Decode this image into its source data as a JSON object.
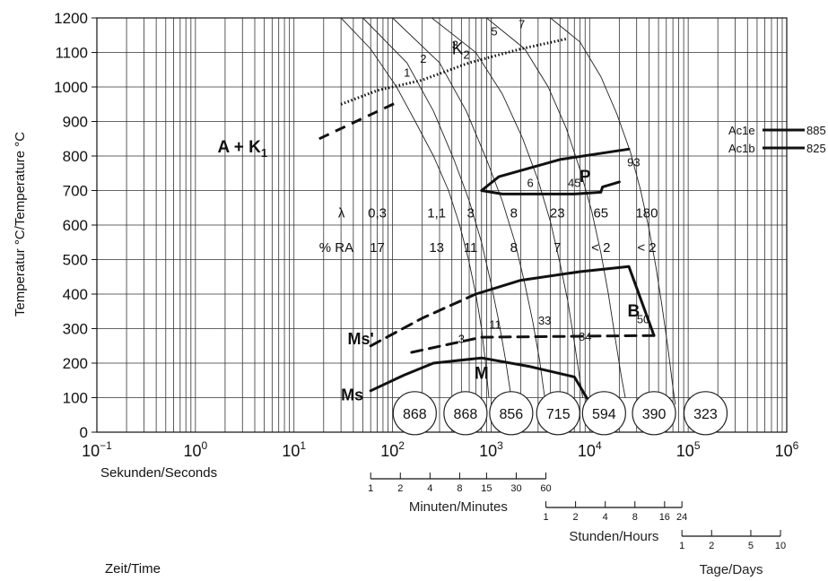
{
  "chart_data": {
    "type": "line",
    "title": "",
    "ylabel": "Temperatur °C/Temperature °C",
    "xlabel_seconds": "Sekunden/Seconds",
    "xlabel_time": "Zeit/Time",
    "xscale": "log",
    "xlim": [
      0.1,
      1000000
    ],
    "ylim": [
      0,
      1200
    ],
    "grid": true,
    "x_ticks": [
      {
        "value": 0.1,
        "base": "10",
        "exp": "−1"
      },
      {
        "value": 1,
        "base": "10",
        "exp": "0"
      },
      {
        "value": 10,
        "base": "10",
        "exp": "1"
      },
      {
        "value": 100,
        "base": "10",
        "exp": "2"
      },
      {
        "value": 1000,
        "base": "10",
        "exp": "3"
      },
      {
        "value": 10000,
        "base": "10",
        "exp": "4"
      },
      {
        "value": 100000,
        "base": "10",
        "exp": "5"
      },
      {
        "value": 1000000,
        "base": "10",
        "exp": "6"
      }
    ],
    "y_ticks": [
      0,
      100,
      200,
      300,
      400,
      500,
      600,
      700,
      800,
      900,
      1000,
      1100,
      1200
    ],
    "secondary_scales": [
      {
        "label": "Minuten/Minutes",
        "factor": 60,
        "ticks": [
          "1",
          "2",
          "4",
          "8",
          "15",
          "30",
          "60"
        ],
        "values": [
          1,
          2,
          4,
          8,
          15,
          30,
          60
        ]
      },
      {
        "label": "Stunden/Hours",
        "factor": 3600,
        "ticks": [
          "1",
          "2",
          "4",
          "8",
          "16",
          "24"
        ],
        "values": [
          1,
          2,
          4,
          8,
          16,
          24
        ]
      },
      {
        "label": "Tage/Days",
        "factor": 86400,
        "ticks": [
          "1",
          "2",
          "5",
          "10"
        ],
        "values": [
          1,
          2,
          5,
          10
        ]
      }
    ],
    "regions": [
      {
        "label": "A + K",
        "sub": "1",
        "x": 3,
        "y": 810
      },
      {
        "label": "P",
        "x": 9000,
        "y": 725
      },
      {
        "label": "B",
        "x": 28000,
        "y": 335
      },
      {
        "label": "M",
        "x": 800,
        "y": 155
      }
    ],
    "k2_label": {
      "label": "K",
      "sub": "2"
    },
    "ms_labels": [
      "Ms",
      "Ms'"
    ],
    "ac_lines": [
      {
        "name": "Ac1e",
        "value": "885"
      },
      {
        "name": "Ac1b",
        "value": "825"
      }
    ],
    "cooling_curves": [
      {
        "label": "1",
        "points": [
          [
            30,
            1200
          ],
          [
            60,
            1110
          ],
          [
            110,
            1000
          ],
          [
            170,
            900
          ],
          [
            260,
            800
          ],
          [
            370,
            700
          ],
          [
            480,
            600
          ],
          [
            590,
            500
          ],
          [
            700,
            400
          ],
          [
            800,
            300
          ],
          [
            880,
            200
          ],
          [
            950,
            100
          ]
        ]
      },
      {
        "label": "2",
        "points": [
          [
            50,
            1200
          ],
          [
            140,
            1070
          ],
          [
            260,
            930
          ],
          [
            420,
            790
          ],
          [
            600,
            670
          ],
          [
            800,
            550
          ],
          [
            1000,
            430
          ],
          [
            1200,
            320
          ],
          [
            1400,
            210
          ],
          [
            1600,
            100
          ]
        ]
      },
      {
        "label": "3",
        "points": [
          [
            100,
            1200
          ],
          [
            300,
            1070
          ],
          [
            560,
            930
          ],
          [
            900,
            790
          ],
          [
            1300,
            670
          ],
          [
            1750,
            550
          ],
          [
            2200,
            430
          ],
          [
            2650,
            320
          ],
          [
            3100,
            210
          ],
          [
            3500,
            100
          ]
        ]
      },
      {
        "label": "5",
        "points": [
          [
            250,
            1200
          ],
          [
            700,
            1100
          ],
          [
            1300,
            980
          ],
          [
            2100,
            850
          ],
          [
            3000,
            730
          ],
          [
            4000,
            610
          ],
          [
            5000,
            490
          ],
          [
            6000,
            380
          ],
          [
            7000,
            260
          ],
          [
            8000,
            150
          ],
          [
            8500,
            100
          ]
        ]
      },
      {
        "label": "7",
        "points": [
          [
            900,
            1200
          ],
          [
            2200,
            1110
          ],
          [
            3800,
            1000
          ],
          [
            5800,
            880
          ],
          [
            8000,
            760
          ],
          [
            10500,
            640
          ],
          [
            13000,
            520
          ],
          [
            15500,
            400
          ],
          [
            18000,
            280
          ],
          [
            21000,
            160
          ],
          [
            23000,
            100
          ]
        ]
      },
      {
        "label": "",
        "points": [
          [
            4000,
            1200
          ],
          [
            8000,
            1130
          ],
          [
            13000,
            1030
          ],
          [
            19000,
            920
          ],
          [
            26000,
            810
          ],
          [
            33000,
            700
          ],
          [
            40000,
            590
          ],
          [
            47000,
            480
          ],
          [
            54000,
            370
          ],
          [
            62000,
            250
          ],
          [
            70000,
            130
          ],
          [
            74000,
            80
          ]
        ]
      }
    ],
    "k2_line": {
      "points": [
        [
          30,
          950
        ],
        [
          70,
          990
        ],
        [
          200,
          1020
        ],
        [
          600,
          1070
        ],
        [
          2000,
          1110
        ],
        [
          6000,
          1140
        ]
      ]
    },
    "k2_dashed": {
      "points": [
        [
          18,
          850
        ],
        [
          60,
          920
        ],
        [
          120,
          960
        ]
      ]
    },
    "transformation_lines": [
      {
        "name": "P start",
        "points": [
          [
            25000,
            820
          ],
          [
            5000,
            790
          ],
          [
            1200,
            740
          ],
          [
            800,
            700
          ],
          [
            1300,
            690
          ],
          [
            7000,
            690
          ],
          [
            13000,
            695
          ],
          [
            13500,
            710
          ],
          [
            20000,
            725
          ]
        ]
      },
      {
        "name": "B",
        "points": [
          [
            60,
            250
          ],
          [
            200,
            330
          ],
          [
            700,
            400
          ],
          [
            2000,
            440
          ],
          [
            8000,
            465
          ],
          [
            25000,
            480
          ],
          [
            45000,
            280
          ],
          [
            800,
            275
          ],
          [
            150,
            230
          ]
        ]
      },
      {
        "name": "Ms",
        "points": [
          [
            60,
            120
          ],
          [
            130,
            165
          ],
          [
            260,
            200
          ],
          [
            800,
            215
          ],
          [
            2500,
            190
          ],
          [
            7000,
            160
          ],
          [
            10000,
            85
          ]
        ]
      }
    ],
    "curve_numbers": [
      {
        "label": "6",
        "x": 2500,
        "y": 710
      },
      {
        "label": "45",
        "x": 7000,
        "y": 710
      },
      {
        "label": "93",
        "x": 28000,
        "y": 770
      },
      {
        "label": "3",
        "x": 500,
        "y": 258
      },
      {
        "label": "11",
        "x": 1100,
        "y": 300
      },
      {
        "label": "33",
        "x": 3500,
        "y": 312
      },
      {
        "label": "84",
        "x": 9000,
        "y": 265
      },
      {
        "label": "50",
        "x": 35000,
        "y": 315
      }
    ],
    "lambda_row": {
      "label": "λ",
      "values": [
        "0,3",
        "1,1",
        "3",
        "8",
        "23",
        "65",
        "180"
      ]
    },
    "ra_row": {
      "label": "% RA",
      "values": [
        "17",
        "13",
        "11",
        "8",
        "7",
        "< 2",
        "< 2"
      ]
    },
    "hardness": [
      "868",
      "868",
      "856",
      "715",
      "594",
      "390",
      "323"
    ]
  }
}
